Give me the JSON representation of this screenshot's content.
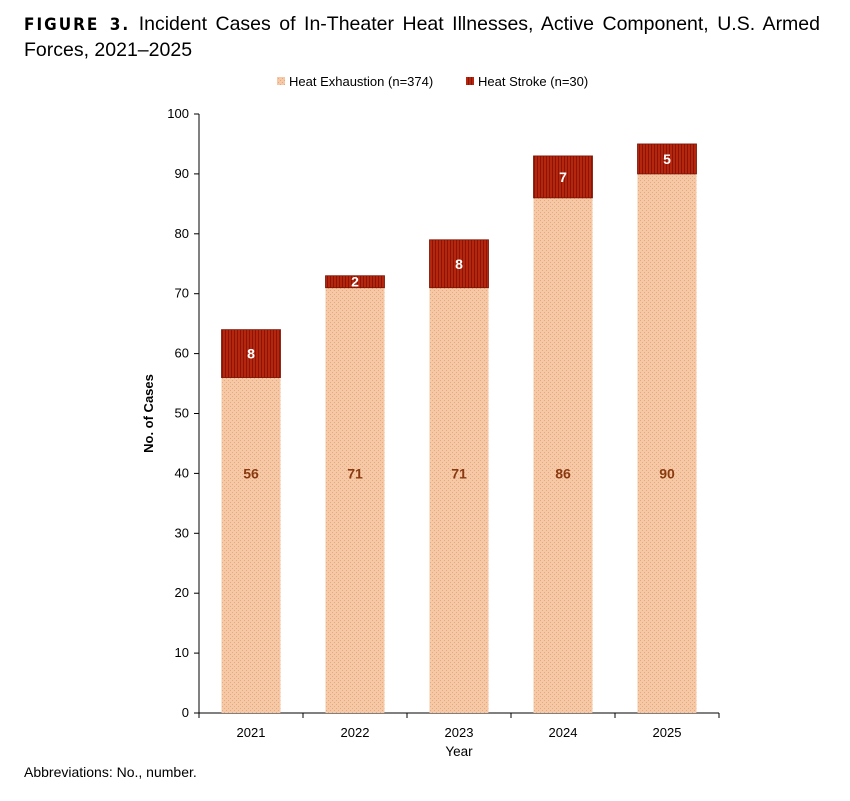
{
  "figure": {
    "label": "FIGURE 3.",
    "title": "Incident Cases of In-Theater Heat Illnesses, Active Component, U.S. Armed Forces, 2021–2025"
  },
  "footnote": "Abbreviations: No., number.",
  "colors": {
    "heat_exhaustion": "#f6c9a6",
    "heat_exhaustion_pattern": "#e9a77f",
    "heat_stroke": "#b5260f",
    "heat_stroke_pattern": "#8c1404",
    "exhaustion_label": "#8a3a10",
    "stroke_label": "#ffffff"
  },
  "chart_data": {
    "type": "bar",
    "stacked": true,
    "categories": [
      "2021",
      "2022",
      "2023",
      "2024",
      "2025"
    ],
    "series": [
      {
        "name": "Heat Exhaustion (n=374)",
        "values": [
          56,
          71,
          71,
          86,
          90
        ]
      },
      {
        "name": "Heat Stroke (n=30)",
        "values": [
          8,
          2,
          8,
          7,
          5
        ]
      }
    ],
    "xlabel": "Year",
    "ylabel": "No. of Cases",
    "ylim": [
      0,
      100
    ],
    "yticks": [
      0,
      10,
      20,
      30,
      40,
      50,
      60,
      70,
      80,
      90,
      100
    ],
    "legend_position": "top-center",
    "grid": false,
    "data_labels": true
  }
}
